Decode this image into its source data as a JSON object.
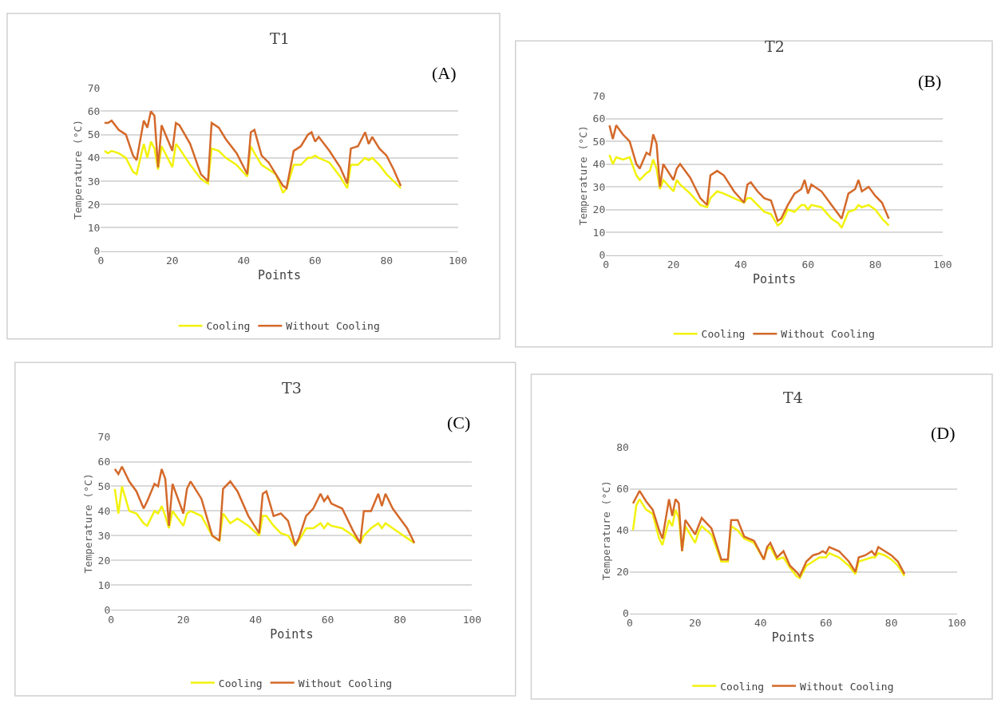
{
  "chart_data": [
    {
      "type": "line",
      "title": "T1",
      "xlabel": "Points",
      "ylabel": "Temperature (°C)",
      "annotations": [
        "(A)"
      ],
      "xlim": [
        0,
        100
      ],
      "xticks": [
        0,
        20,
        40,
        60,
        80,
        100
      ],
      "ylim": [
        0,
        70
      ],
      "yticks": [
        0,
        10,
        20,
        30,
        40,
        50,
        60,
        70
      ],
      "grid": "y",
      "legend": "bottom",
      "x": [
        1,
        2,
        3,
        5,
        7,
        9,
        10,
        12,
        13,
        14,
        15,
        16,
        17,
        20,
        21,
        22,
        25,
        28,
        30,
        31,
        33,
        35,
        38,
        41,
        42,
        43,
        45,
        47,
        49,
        51,
        52,
        54,
        56,
        58,
        59,
        60,
        61,
        64,
        67,
        69,
        70,
        72,
        74,
        75,
        76,
        78,
        80,
        82,
        84
      ],
      "series": [
        {
          "name": "Cooling",
          "color": "#f2f20c",
          "values": [
            43,
            42,
            43,
            42,
            40,
            34,
            33,
            46,
            40,
            47,
            44,
            35,
            45,
            36,
            46,
            44,
            37,
            31,
            29,
            44,
            43,
            40,
            37,
            32,
            45,
            42,
            37,
            35,
            33,
            25,
            27,
            37,
            37,
            40,
            40,
            41,
            40,
            38,
            32,
            27,
            37,
            37,
            40,
            39,
            40,
            37,
            33,
            30,
            27
          ]
        },
        {
          "name": "Without Cooling",
          "color": "#d4692a",
          "values": [
            55,
            55,
            56,
            52,
            50,
            41,
            39,
            56,
            53,
            60,
            58,
            36,
            54,
            43,
            55,
            54,
            46,
            33,
            30,
            55,
            53,
            48,
            42,
            33,
            51,
            52,
            41,
            38,
            33,
            28,
            27,
            43,
            45,
            50,
            51,
            47,
            49,
            43,
            36,
            29,
            44,
            45,
            51,
            46,
            49,
            44,
            41,
            35,
            28
          ]
        }
      ]
    },
    {
      "type": "line",
      "title": "T2",
      "xlabel": "Points",
      "ylabel": "Temperature (°C)",
      "annotations": [
        "(B)"
      ],
      "xlim": [
        0,
        100
      ],
      "xticks": [
        0,
        20,
        40,
        60,
        80,
        100
      ],
      "ylim": [
        0,
        70
      ],
      "yticks": [
        0,
        10,
        20,
        30,
        40,
        50,
        60,
        70
      ],
      "grid": "y",
      "legend": "bottom",
      "x": [
        1,
        2,
        3,
        5,
        7,
        9,
        10,
        12,
        13,
        14,
        15,
        16,
        17,
        20,
        21,
        22,
        25,
        28,
        30,
        31,
        33,
        35,
        38,
        41,
        42,
        43,
        45,
        47,
        49,
        51,
        52,
        54,
        56,
        58,
        59,
        60,
        61,
        64,
        67,
        69,
        70,
        72,
        74,
        75,
        76,
        78,
        80,
        82,
        84
      ],
      "series": [
        {
          "name": "Cooling",
          "color": "#f2f20c",
          "values": [
            44,
            40,
            43,
            42,
            43,
            35,
            33,
            36,
            37,
            42,
            38,
            29,
            33,
            28,
            33,
            31,
            27,
            22,
            21,
            25,
            28,
            27,
            25,
            23,
            25,
            25,
            22,
            19,
            18,
            13,
            14,
            20,
            19,
            22,
            22,
            20,
            22,
            21,
            16,
            14,
            12,
            19,
            20,
            22,
            21,
            22,
            20,
            16,
            13
          ]
        },
        {
          "name": "Without Cooling",
          "color": "#d4692a",
          "values": [
            57,
            51,
            57,
            53,
            50,
            40,
            38,
            45,
            44,
            53,
            49,
            30,
            40,
            33,
            38,
            40,
            34,
            25,
            22,
            35,
            37,
            35,
            28,
            23,
            31,
            32,
            28,
            25,
            24,
            15,
            16,
            22,
            27,
            29,
            33,
            27,
            31,
            28,
            22,
            18,
            16,
            27,
            29,
            33,
            28,
            30,
            26,
            23,
            16
          ]
        }
      ]
    },
    {
      "type": "line",
      "title": "T3",
      "xlabel": "Points",
      "ylabel": "Temperature (°C)",
      "annotations": [
        "(C)"
      ],
      "xlim": [
        0,
        100
      ],
      "xticks": [
        0,
        20,
        40,
        60,
        80,
        100
      ],
      "ylim": [
        0,
        70
      ],
      "yticks": [
        0,
        10,
        20,
        30,
        40,
        50,
        60,
        70
      ],
      "grid": "y",
      "legend": "bottom",
      "x": [
        1,
        2,
        3,
        5,
        7,
        9,
        10,
        12,
        13,
        14,
        15,
        16,
        17,
        20,
        21,
        22,
        25,
        28,
        30,
        31,
        33,
        35,
        38,
        41,
        42,
        43,
        45,
        47,
        49,
        51,
        52,
        54,
        56,
        58,
        59,
        60,
        61,
        64,
        67,
        69,
        70,
        72,
        74,
        75,
        76,
        78,
        80,
        82,
        84
      ],
      "series": [
        {
          "name": "Cooling",
          "color": "#f2f20c",
          "values": [
            49,
            39,
            50,
            40,
            39,
            35,
            34,
            40,
            39,
            42,
            38,
            33,
            40,
            34,
            39,
            40,
            38,
            30,
            28,
            39,
            35,
            37,
            34,
            30,
            38,
            38,
            34,
            31,
            30,
            26,
            28,
            33,
            33,
            35,
            33,
            35,
            34,
            33,
            30,
            27,
            30,
            33,
            35,
            33,
            35,
            33,
            31,
            29,
            27
          ]
        },
        {
          "name": "Without Cooling",
          "color": "#d4692a",
          "values": [
            57,
            55,
            58,
            52,
            48,
            41,
            44,
            51,
            50,
            57,
            53,
            34,
            51,
            39,
            49,
            52,
            45,
            30,
            28,
            49,
            52,
            48,
            38,
            31,
            47,
            48,
            38,
            39,
            36,
            26,
            29,
            38,
            41,
            47,
            44,
            46,
            43,
            41,
            32,
            27,
            40,
            40,
            47,
            42,
            47,
            41,
            37,
            33,
            27
          ]
        }
      ]
    },
    {
      "type": "line",
      "title": "T4",
      "xlabel": "Points",
      "ylabel": "Temperature (°C)",
      "annotations": [
        "(D)"
      ],
      "xlim": [
        0,
        100
      ],
      "xticks": [
        0,
        20,
        40,
        60,
        80,
        100
      ],
      "ylim": [
        0,
        80
      ],
      "yticks": [
        0,
        20,
        40,
        60,
        80
      ],
      "grid": "y",
      "legend": "bottom",
      "x": [
        1,
        2,
        3,
        5,
        7,
        9,
        10,
        12,
        13,
        14,
        15,
        16,
        17,
        20,
        21,
        22,
        25,
        28,
        30,
        31,
        33,
        35,
        38,
        41,
        42,
        43,
        45,
        47,
        49,
        51,
        52,
        54,
        56,
        58,
        59,
        60,
        61,
        64,
        67,
        69,
        70,
        72,
        74,
        75,
        76,
        78,
        80,
        82,
        84
      ],
      "series": [
        {
          "name": "Cooling",
          "color": "#f2f20c",
          "values": [
            40,
            52,
            55,
            50,
            48,
            36,
            33,
            45,
            42,
            50,
            46,
            30,
            42,
            34,
            39,
            42,
            38,
            25,
            25,
            42,
            40,
            36,
            34,
            26,
            31,
            32,
            26,
            27,
            22,
            18,
            17,
            23,
            25,
            27,
            27,
            27,
            29,
            27,
            23,
            19,
            25,
            26,
            27,
            27,
            29,
            28,
            26,
            23,
            18
          ]
        },
        {
          "name": "Without Cooling",
          "color": "#d4692a",
          "values": [
            53,
            56,
            59,
            54,
            50,
            40,
            36,
            55,
            47,
            55,
            53,
            30,
            45,
            38,
            42,
            46,
            41,
            26,
            26,
            45,
            45,
            37,
            35,
            26,
            32,
            34,
            27,
            30,
            23,
            20,
            18,
            25,
            28,
            29,
            30,
            29,
            32,
            30,
            25,
            20,
            27,
            28,
            30,
            28,
            32,
            30,
            28,
            25,
            19
          ]
        }
      ]
    }
  ]
}
